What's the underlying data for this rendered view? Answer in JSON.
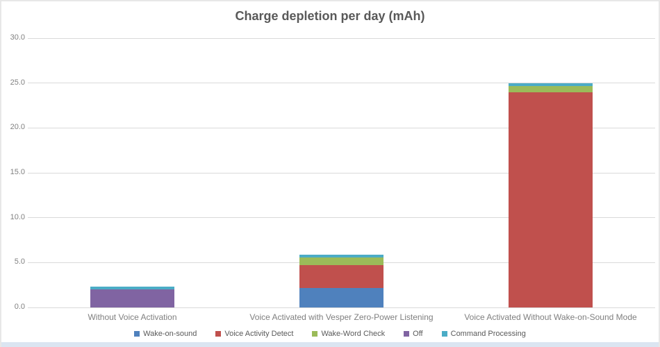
{
  "chart_data": {
    "type": "bar",
    "stacked": true,
    "title": "Charge depletion per day (mAh)",
    "xlabel": "",
    "ylabel": "",
    "categories": [
      "Without Voice Activation",
      "Voice Activated with Vesper Zero-Power Listening",
      "Voice Activated Without Wake-on-Sound Mode"
    ],
    "series": [
      {
        "name": "Wake-on-sound",
        "color": "#4F81BD",
        "values": [
          0,
          2.15,
          0
        ]
      },
      {
        "name": "Voice Activity Detect",
        "color": "#C0504D",
        "values": [
          0,
          2.55,
          23.95
        ]
      },
      {
        "name": "Wake-Word Check",
        "color": "#9BBB59",
        "values": [
          0,
          0.9,
          0.7
        ]
      },
      {
        "name": "Off",
        "color": "#8064A2",
        "values": [
          2.0,
          0,
          0
        ]
      },
      {
        "name": "Command Processing",
        "color": "#4BACC6",
        "values": [
          0.33,
          0.3,
          0.32
        ]
      }
    ],
    "category_totals": [
      2.33,
      5.9,
      24.97
    ],
    "ylim": [
      0,
      30
    ],
    "ytick_step": 5,
    "ytick_labels": [
      "0.0",
      "5.0",
      "10.0",
      "15.0",
      "20.0",
      "25.0",
      "30.0"
    ],
    "grid": true,
    "legend_position": "bottom"
  },
  "colors": {
    "background": "#ffffff",
    "title_text": "#595959",
    "axis_text": "#808080",
    "category_text": "#7f7f7f",
    "legend_text": "#595959",
    "gridline": "#d9d9d9",
    "frame_border": "#e7e7e7",
    "bottom_strip": "#dbe5f1"
  }
}
